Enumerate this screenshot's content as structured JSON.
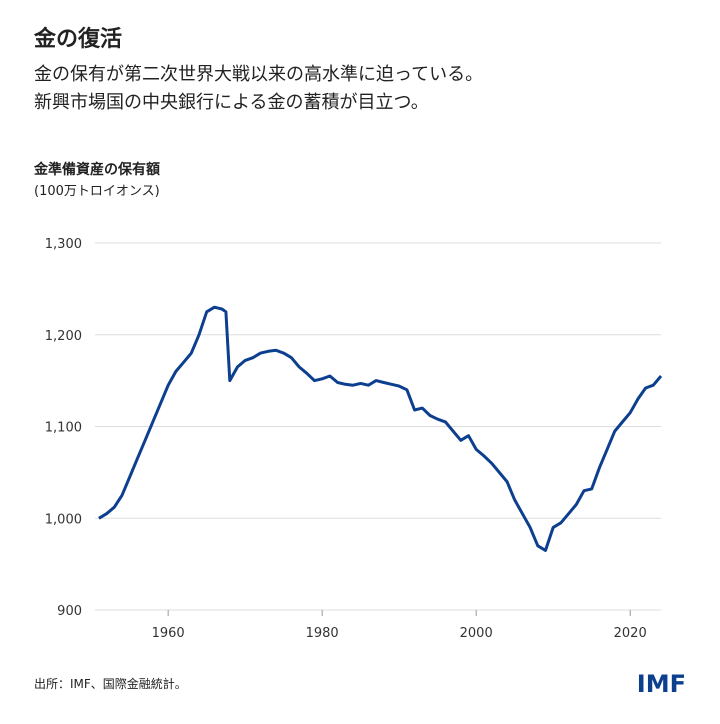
{
  "chart_data": {
    "type": "line",
    "title": "金の復活",
    "subtitle": [
      "金の保有が第二次世界大戦以来の高水準に迫っている。",
      "新興市場国の中央銀行による金の蓄積が目立つ。"
    ],
    "y_label": "金準備資産の保有額",
    "y_unit": "(100万トロイオンス)",
    "source": "出所：IMF、国際金融統計。",
    "logo": "IMF",
    "x": [
      1951,
      1952,
      1953,
      1954,
      1955,
      1956,
      1957,
      1958,
      1959,
      1960,
      1961,
      1962,
      1963,
      1964,
      1965,
      1966,
      1967,
      1967.5,
      1968,
      1969,
      1970,
      1971,
      1972,
      1973,
      1974,
      1975,
      1976,
      1977,
      1978,
      1979,
      1980,
      1981,
      1982,
      1983,
      1984,
      1985,
      1986,
      1987,
      1988,
      1989,
      1990,
      1991,
      1992,
      1993,
      1994,
      1995,
      1996,
      1997,
      1998,
      1999,
      2000,
      2001,
      2002,
      2003,
      2004,
      2005,
      2006,
      2007,
      2008,
      2009,
      2010,
      2011,
      2012,
      2013,
      2014,
      2015,
      2016,
      2017,
      2018,
      2019,
      2020,
      2021,
      2022,
      2023,
      2024
    ],
    "series": [
      {
        "name": "金準備資産の保有額",
        "color": "#0d3f8f",
        "values": [
          1000,
          1005,
          1012,
          1025,
          1045,
          1065,
          1085,
          1105,
          1125,
          1145,
          1160,
          1170,
          1180,
          1200,
          1225,
          1230,
          1228,
          1225,
          1150,
          1165,
          1172,
          1175,
          1180,
          1182,
          1183,
          1180,
          1175,
          1165,
          1158,
          1150,
          1152,
          1155,
          1148,
          1146,
          1145,
          1147,
          1145,
          1150,
          1148,
          1146,
          1144,
          1140,
          1118,
          1120,
          1112,
          1108,
          1105,
          1095,
          1085,
          1090,
          1075,
          1068,
          1060,
          1050,
          1040,
          1020,
          1005,
          990,
          970,
          965,
          990,
          995,
          1005,
          1015,
          1030,
          1032,
          1055,
          1075,
          1095,
          1105,
          1115,
          1130,
          1142,
          1145,
          1155
        ]
      }
    ],
    "xlim": [
      1950.5,
      2024
    ],
    "xticks": [
      1960,
      1980,
      2000,
      2020
    ],
    "ylim": [
      900,
      1300
    ],
    "yticks": [
      900,
      {
        "value": 1000,
        "label": "1,000"
      },
      {
        "value": 1100,
        "label": "1,100"
      },
      {
        "value": 1200,
        "label": "1,200"
      },
      {
        "value": 1300,
        "label": "1,300"
      }
    ],
    "grid": true
  }
}
